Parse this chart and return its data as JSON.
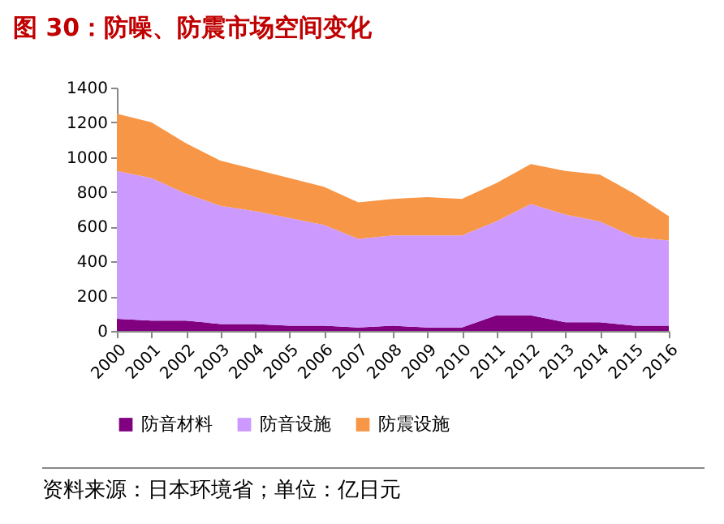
{
  "chart_data": {
    "type": "area",
    "title": "图 30：防噪、防震市场空间变化",
    "annotations": [
      "资料来源：日本环境省；单位：亿日元"
    ],
    "categories": [
      "2000",
      "2001",
      "2002",
      "2003",
      "2004",
      "2005",
      "2006",
      "2007",
      "2008",
      "2009",
      "2010",
      "2011",
      "2012",
      "2013",
      "2014",
      "2015",
      "2016"
    ],
    "stacked": true,
    "legend": "bottom",
    "grid": false,
    "ylim": [
      0,
      1400
    ],
    "yticks": [
      0,
      200,
      400,
      600,
      800,
      1000,
      1200,
      1400
    ],
    "series": [
      {
        "name": "防音材料",
        "color": "#800080",
        "values": [
          70,
          60,
          60,
          40,
          40,
          30,
          30,
          20,
          30,
          20,
          20,
          90,
          90,
          50,
          50,
          30,
          30
        ]
      },
      {
        "name": "防音设施",
        "color": "#cc99ff",
        "values": [
          850,
          820,
          730,
          680,
          650,
          620,
          580,
          510,
          520,
          530,
          530,
          540,
          640,
          620,
          580,
          510,
          490
        ]
      },
      {
        "name": "防震设施",
        "color": "#f79646",
        "values": [
          330,
          320,
          290,
          260,
          240,
          230,
          220,
          210,
          210,
          220,
          210,
          220,
          230,
          250,
          270,
          250,
          140
        ]
      }
    ]
  }
}
